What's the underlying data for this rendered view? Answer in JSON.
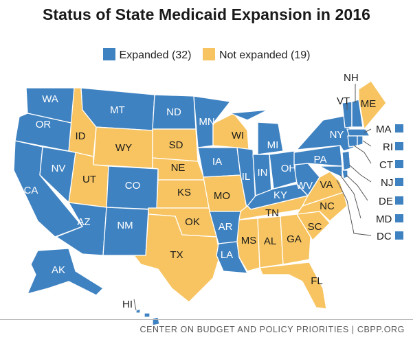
{
  "title": "Status of State Medicaid Expansion in 2016",
  "legend": {
    "expanded": {
      "label": "Expanded (32)",
      "color": "#3f82c1"
    },
    "not_expanded": {
      "label": "Not expanded (19)",
      "color": "#f7c461"
    }
  },
  "footer": "CENTER ON BUDGET AND POLICY PRIORITIES | CBPP.ORG",
  "states": [
    {
      "abbr": "WA",
      "status": "expanded"
    },
    {
      "abbr": "OR",
      "status": "expanded"
    },
    {
      "abbr": "CA",
      "status": "expanded"
    },
    {
      "abbr": "NV",
      "status": "expanded"
    },
    {
      "abbr": "ID",
      "status": "not_expanded"
    },
    {
      "abbr": "MT",
      "status": "expanded"
    },
    {
      "abbr": "WY",
      "status": "not_expanded"
    },
    {
      "abbr": "UT",
      "status": "not_expanded"
    },
    {
      "abbr": "AZ",
      "status": "expanded"
    },
    {
      "abbr": "CO",
      "status": "expanded"
    },
    {
      "abbr": "NM",
      "status": "expanded"
    },
    {
      "abbr": "ND",
      "status": "expanded"
    },
    {
      "abbr": "SD",
      "status": "not_expanded"
    },
    {
      "abbr": "NE",
      "status": "not_expanded"
    },
    {
      "abbr": "KS",
      "status": "not_expanded"
    },
    {
      "abbr": "OK",
      "status": "not_expanded"
    },
    {
      "abbr": "TX",
      "status": "not_expanded"
    },
    {
      "abbr": "MN",
      "status": "expanded"
    },
    {
      "abbr": "IA",
      "status": "expanded"
    },
    {
      "abbr": "MO",
      "status": "not_expanded"
    },
    {
      "abbr": "AR",
      "status": "expanded"
    },
    {
      "abbr": "LA",
      "status": "expanded"
    },
    {
      "abbr": "WI",
      "status": "not_expanded"
    },
    {
      "abbr": "IL",
      "status": "expanded"
    },
    {
      "abbr": "MI",
      "status": "expanded"
    },
    {
      "abbr": "IN",
      "status": "expanded"
    },
    {
      "abbr": "OH",
      "status": "expanded"
    },
    {
      "abbr": "KY",
      "status": "expanded"
    },
    {
      "abbr": "TN",
      "status": "not_expanded"
    },
    {
      "abbr": "MS",
      "status": "not_expanded"
    },
    {
      "abbr": "AL",
      "status": "not_expanded"
    },
    {
      "abbr": "GA",
      "status": "not_expanded"
    },
    {
      "abbr": "FL",
      "status": "not_expanded"
    },
    {
      "abbr": "SC",
      "status": "not_expanded"
    },
    {
      "abbr": "NC",
      "status": "not_expanded"
    },
    {
      "abbr": "VA",
      "status": "not_expanded"
    },
    {
      "abbr": "WV",
      "status": "expanded"
    },
    {
      "abbr": "PA",
      "status": "expanded"
    },
    {
      "abbr": "NY",
      "status": "expanded"
    },
    {
      "abbr": "VT",
      "status": "expanded"
    },
    {
      "abbr": "NH",
      "status": "expanded"
    },
    {
      "abbr": "ME",
      "status": "not_expanded"
    },
    {
      "abbr": "MA",
      "status": "expanded"
    },
    {
      "abbr": "RI",
      "status": "expanded"
    },
    {
      "abbr": "CT",
      "status": "expanded"
    },
    {
      "abbr": "NJ",
      "status": "expanded"
    },
    {
      "abbr": "DE",
      "status": "expanded"
    },
    {
      "abbr": "MD",
      "status": "expanded"
    },
    {
      "abbr": "DC",
      "status": "expanded"
    },
    {
      "abbr": "AK",
      "status": "expanded"
    },
    {
      "abbr": "HI",
      "status": "expanded"
    }
  ]
}
